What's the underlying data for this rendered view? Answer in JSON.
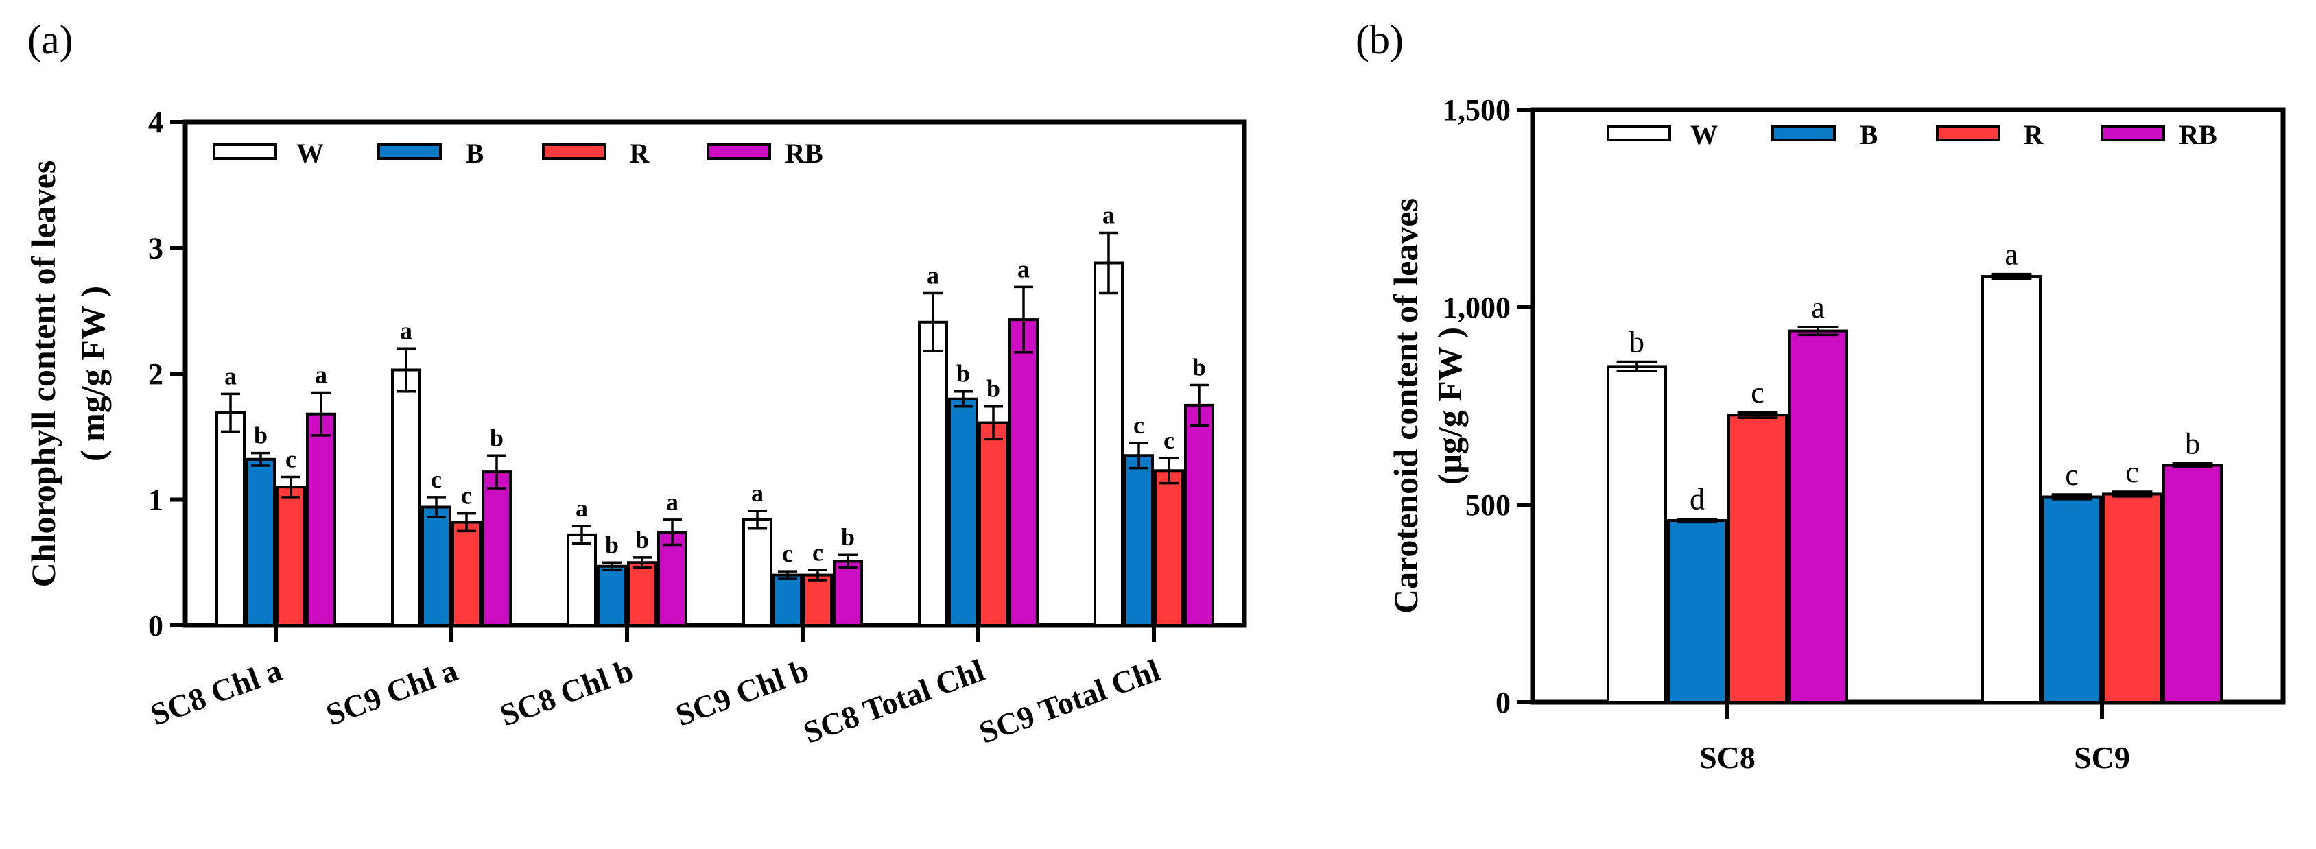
{
  "legend": [
    "W",
    "B",
    "R",
    "RB"
  ],
  "colors": {
    "W": "#ffffff",
    "B": "#0a7ac7",
    "R": "#ff3b3b",
    "RB": "#cc0cc0"
  },
  "chart_data": [
    {
      "type": "bar",
      "panel": "(a)",
      "ylabel_line1": "Chlorophyll content of leaves",
      "ylabel_line2": "( mg/g FW )",
      "ylim": [
        0,
        4
      ],
      "yticks": [
        "0",
        "1",
        "2",
        "3",
        "4"
      ],
      "categories": [
        "SC8 Chl a",
        "SC9 Chl a",
        "SC8 Chl b",
        "SC9 Chl b",
        "SC8 Total Chl",
        "SC9 Total Chl"
      ],
      "series": [
        {
          "name": "W",
          "values": [
            1.69,
            2.03,
            0.72,
            0.84,
            2.41,
            2.88
          ],
          "errors": [
            0.15,
            0.17,
            0.07,
            0.07,
            0.23,
            0.24
          ],
          "letters": [
            "a",
            "a",
            "a",
            "a",
            "a",
            "a"
          ]
        },
        {
          "name": "B",
          "values": [
            1.32,
            0.94,
            0.47,
            0.4,
            1.8,
            1.35
          ],
          "errors": [
            0.05,
            0.08,
            0.03,
            0.03,
            0.06,
            0.1
          ],
          "letters": [
            "b",
            "c",
            "b",
            "c",
            "b",
            "c"
          ]
        },
        {
          "name": "R",
          "values": [
            1.1,
            0.82,
            0.5,
            0.4,
            1.61,
            1.23
          ],
          "errors": [
            0.08,
            0.07,
            0.04,
            0.04,
            0.13,
            0.1
          ],
          "letters": [
            "c",
            "c",
            "b",
            "c",
            "b",
            "c"
          ]
        },
        {
          "name": "RB",
          "values": [
            1.68,
            1.22,
            0.74,
            0.51,
            2.43,
            1.75
          ],
          "errors": [
            0.17,
            0.13,
            0.1,
            0.05,
            0.26,
            0.16
          ],
          "letters": [
            "a",
            "b",
            "a",
            "b",
            "a",
            "b"
          ]
        }
      ]
    },
    {
      "type": "bar",
      "panel": "(b)",
      "ylabel_line1": "Carotenoid content of leaves",
      "ylabel_line2": "(μg/g FW )",
      "ylim": [
        0,
        1500
      ],
      "yticks": [
        "0",
        "500",
        "1,000",
        "1,500"
      ],
      "categories": [
        "SC8",
        "SC9"
      ],
      "series": [
        {
          "name": "W",
          "values": [
            850,
            1078
          ],
          "errors": [
            12,
            6
          ],
          "letters": [
            "b",
            "a"
          ]
        },
        {
          "name": "B",
          "values": [
            460,
            520
          ],
          "errors": [
            4,
            6
          ],
          "letters": [
            "d",
            "c"
          ]
        },
        {
          "name": "R",
          "values": [
            727,
            527
          ],
          "errors": [
            7,
            6
          ],
          "letters": [
            "c",
            "c"
          ]
        },
        {
          "name": "RB",
          "values": [
            940,
            600
          ],
          "errors": [
            10,
            5
          ],
          "letters": [
            "a",
            "b"
          ]
        }
      ]
    }
  ]
}
